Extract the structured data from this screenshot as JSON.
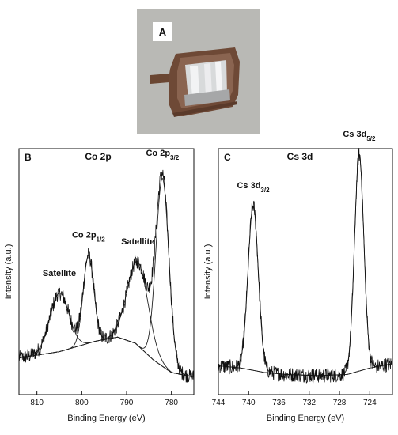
{
  "photo": {
    "panel_label": "A"
  },
  "chart_data": [
    {
      "type": "line",
      "panel_label": "B",
      "title": "Co 2p",
      "xlabel": "Binding Energy (eV)",
      "ylabel": "Intensity (a.u.)",
      "xlim": [
        814,
        775
      ],
      "x_reversed": true,
      "xticks": [
        810,
        800,
        790,
        780
      ],
      "xtick_labels": [
        "810",
        "800",
        "790",
        "780"
      ],
      "yticks": "none",
      "grid": false,
      "legend": "none",
      "annotations": [
        {
          "x": 805,
          "text": "Satellite"
        },
        {
          "x": 798.5,
          "text": "Co 2p",
          "sub": "1/2"
        },
        {
          "x": 787.5,
          "text": "Satellite"
        },
        {
          "x": 782,
          "text": "Co 2p",
          "sub": "3/2"
        }
      ],
      "baseline": {
        "x": [
          814,
          805,
          797,
          792,
          788,
          784,
          780,
          775
        ],
        "y": [
          0.1,
          0.13,
          0.18,
          0.2,
          0.17,
          0.09,
          0.03,
          0.01
        ]
      },
      "peaks": [
        {
          "center": 805,
          "fwhm": 5.0,
          "height": 0.28
        },
        {
          "center": 798.5,
          "fwhm": 2.8,
          "height": 0.42
        },
        {
          "center": 787.5,
          "fwhm": 5.5,
          "height": 0.4
        },
        {
          "center": 782,
          "fwhm": 3.4,
          "height": 0.9
        }
      ]
    },
    {
      "type": "line",
      "panel_label": "C",
      "title": "Cs 3d",
      "xlabel": "Binding Energy (eV)",
      "ylabel": "Intensity (a.u.)",
      "xlim": [
        744,
        721
      ],
      "x_reversed": true,
      "xticks": [
        744,
        740,
        736,
        732,
        728,
        724
      ],
      "xtick_labels": [
        "744",
        "740",
        "736",
        "732",
        "728",
        "724"
      ],
      "yticks": "none",
      "grid": false,
      "legend": "none",
      "annotations": [
        {
          "x": 739.4,
          "text": "Cs 3d",
          "sub": "3/2"
        },
        {
          "x": 725.4,
          "text": "Cs 3d",
          "sub": "5/2"
        }
      ],
      "baseline": {
        "x": [
          744,
          741,
          738,
          735,
          731,
          727,
          724,
          721
        ],
        "y": [
          0.06,
          0.05,
          0.03,
          0.02,
          0.015,
          0.02,
          0.05,
          0.07
        ]
      },
      "peaks": [
        {
          "center": 739.4,
          "fwhm": 1.6,
          "height": 0.76
        },
        {
          "center": 725.4,
          "fwhm": 1.45,
          "height": 1.0
        }
      ]
    }
  ]
}
